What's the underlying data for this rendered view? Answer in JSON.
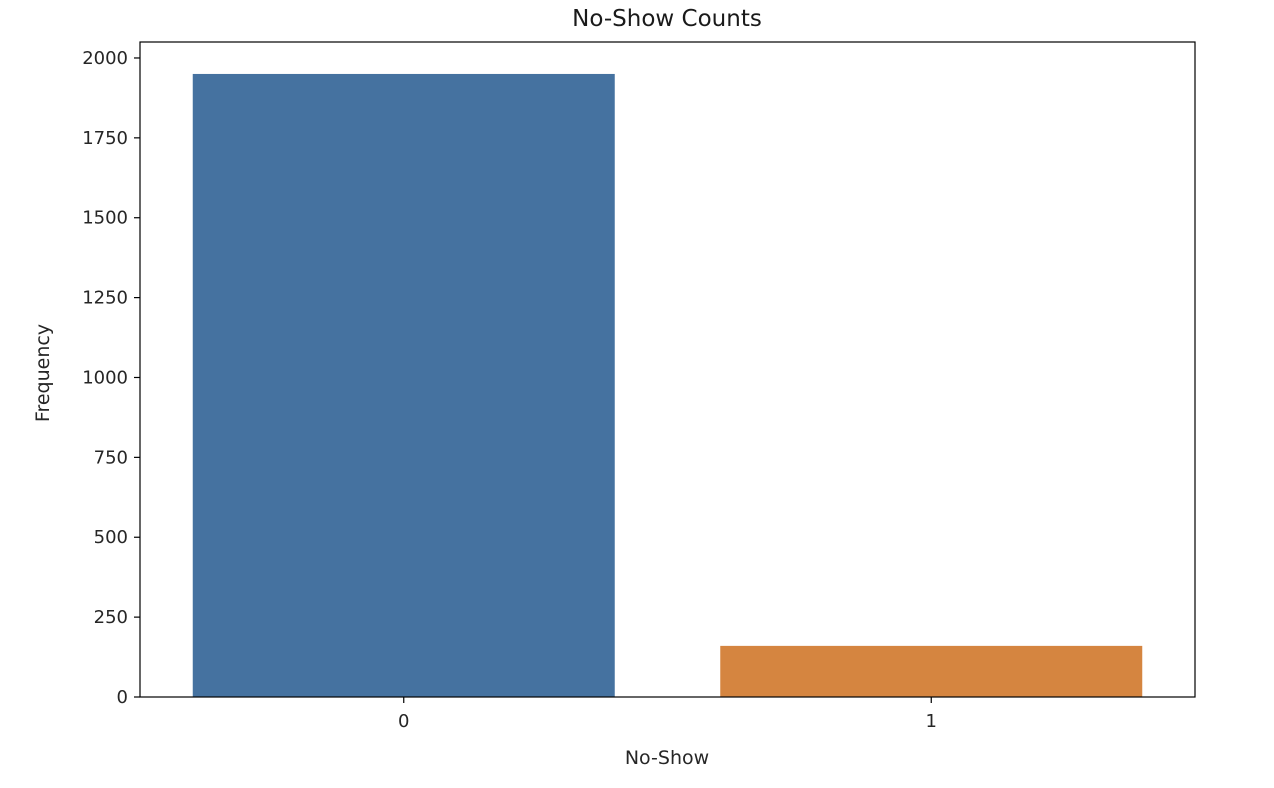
{
  "chart_data": {
    "type": "bar",
    "title": "No-Show Counts",
    "xlabel": "No-Show",
    "ylabel": "Frequency",
    "categories": [
      "0",
      "1"
    ],
    "values": [
      1950,
      160
    ],
    "colors": [
      "#4572A0",
      "#D58540"
    ],
    "ylim": [
      0,
      2050
    ],
    "yticks": [
      0,
      250,
      500,
      750,
      1000,
      1250,
      1500,
      1750,
      2000
    ],
    "ytick_labels": [
      "0",
      "250",
      "500",
      "750",
      "1000",
      "1250",
      "1500",
      "1750",
      "2000"
    ],
    "grid": false,
    "legend": "none"
  }
}
